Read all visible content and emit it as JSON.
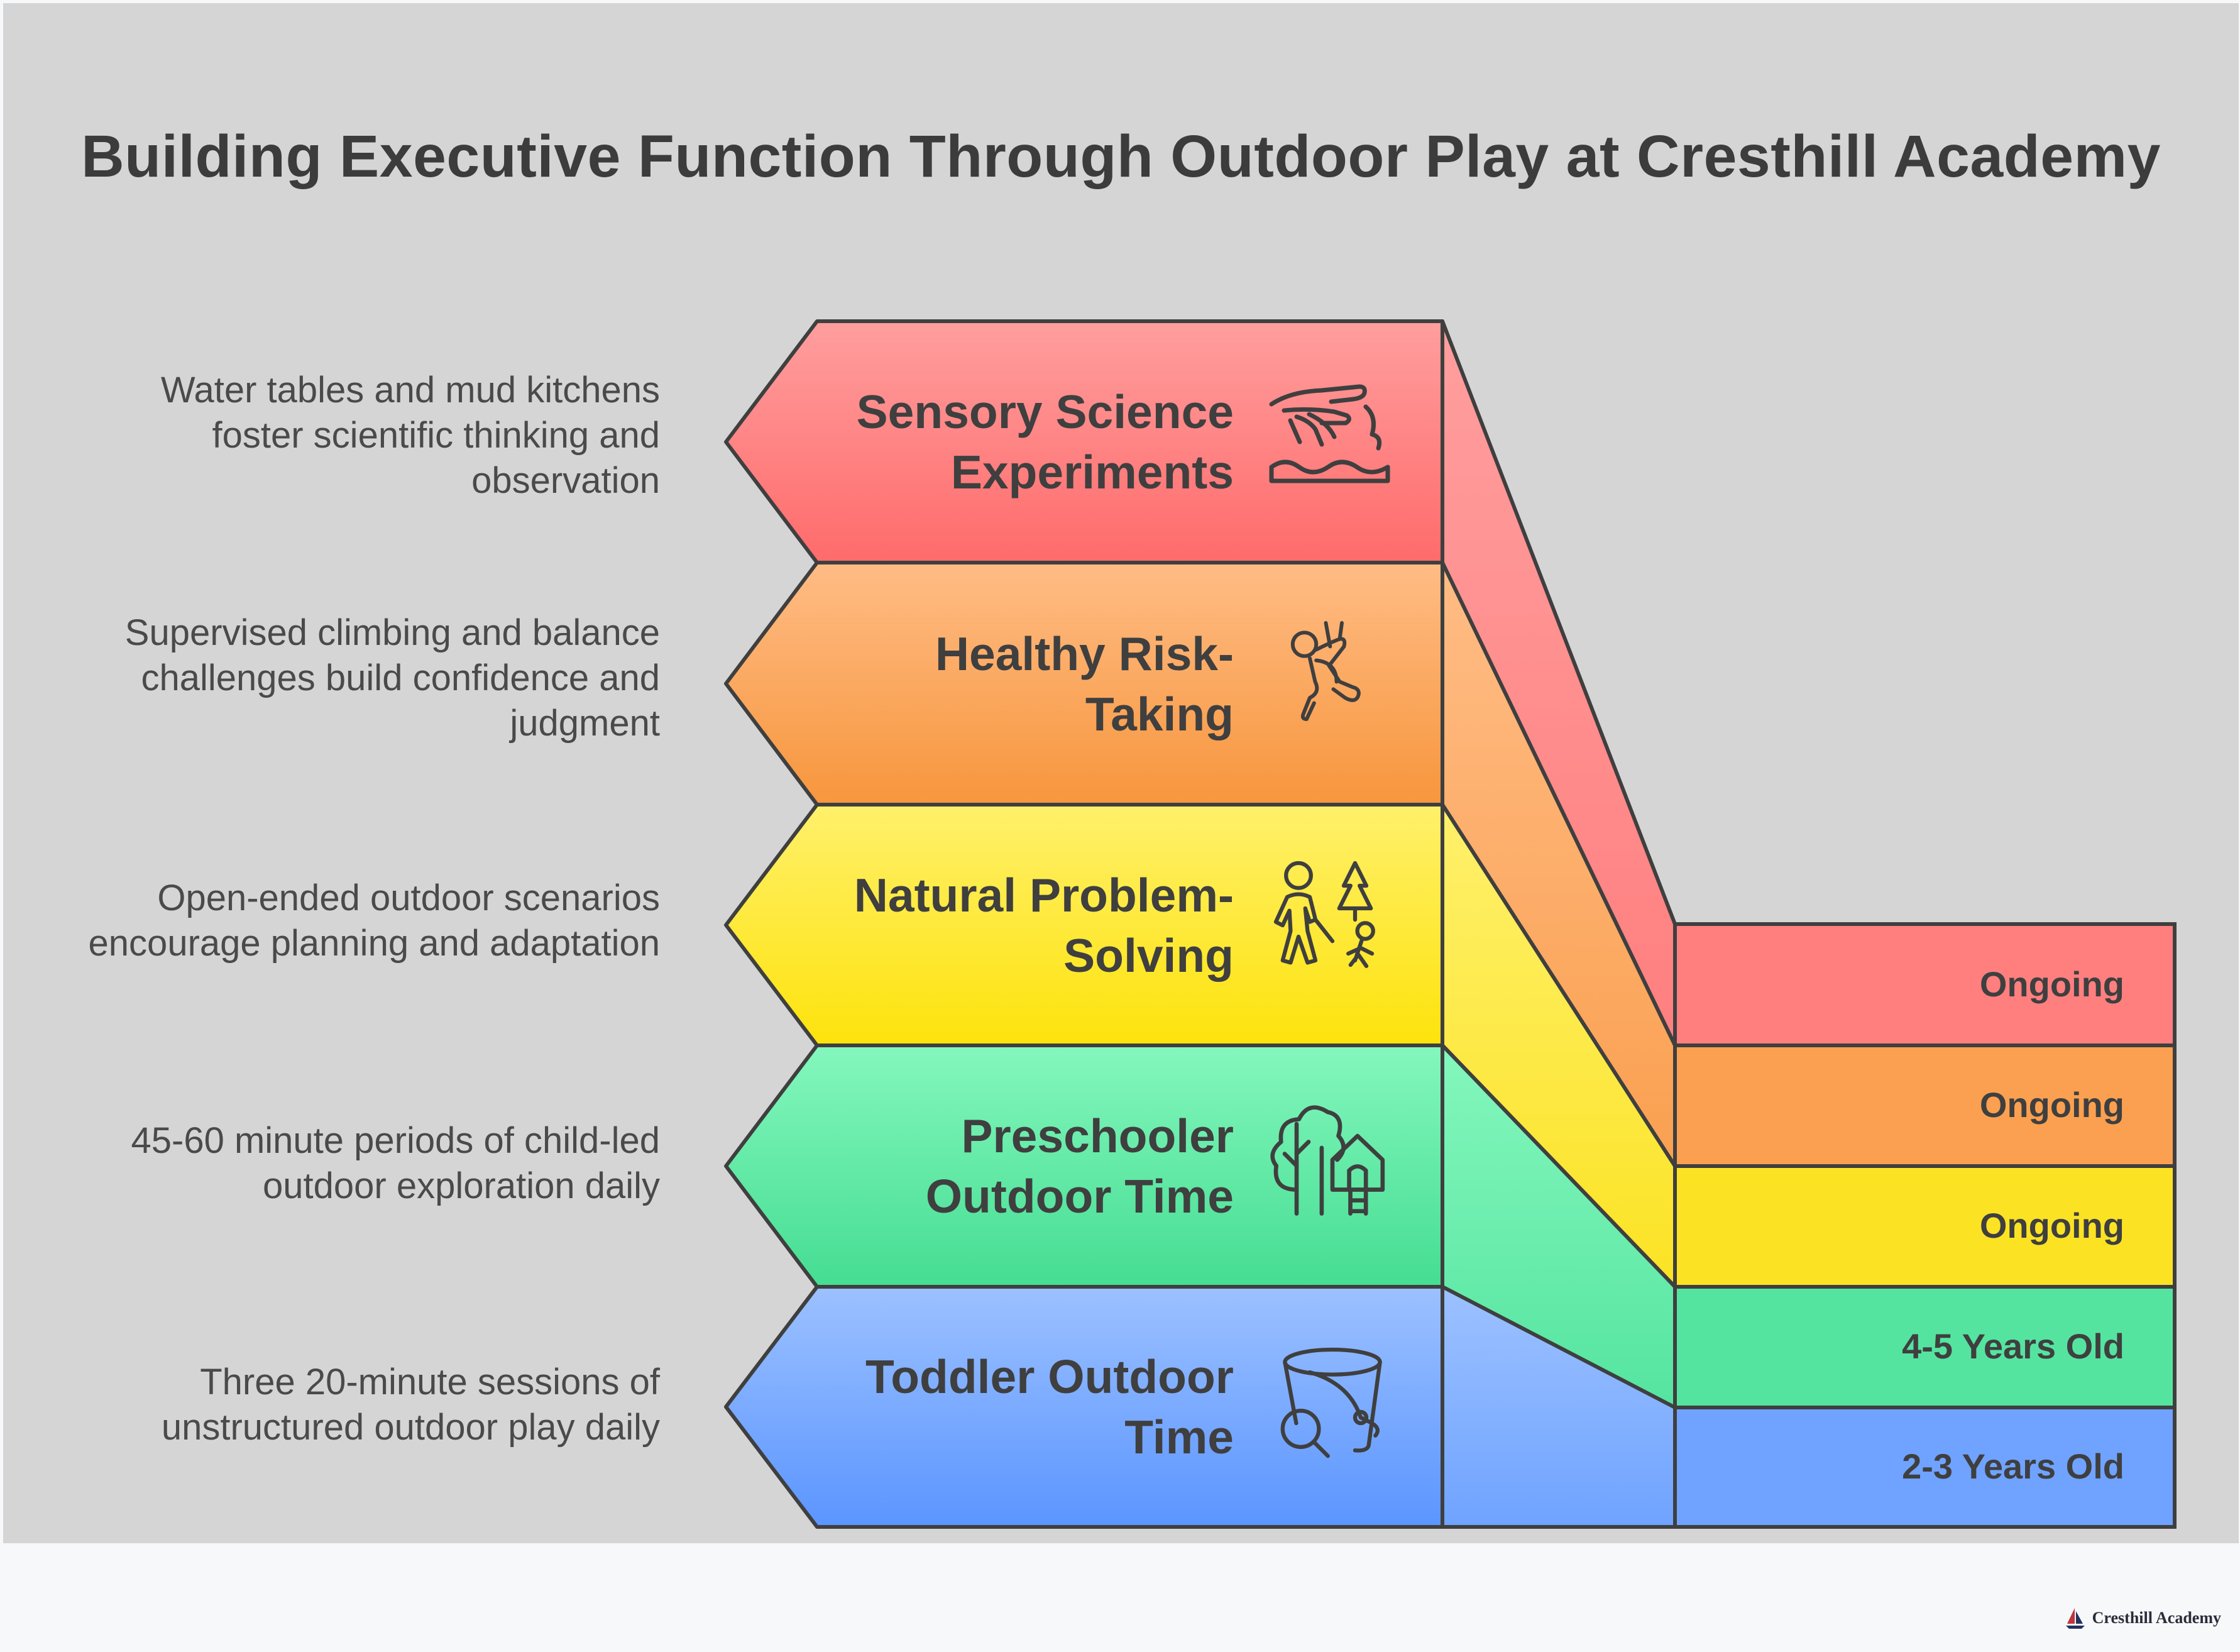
{
  "title": "Building Executive Function Through Outdoor Play at Cresthill Academy",
  "levels": [
    {
      "title_lines": [
        "Sensory Science",
        "Experiments"
      ],
      "description_lines": [
        "Water tables and mud kitchens",
        "foster scientific thinking and",
        "observation"
      ],
      "tag": "Ongoing",
      "icon": "hand-touching-water-icon",
      "colors": {
        "top": "#ff9e9e",
        "bottom": "#ff6b6b",
        "side": "#ff7f7f"
      }
    },
    {
      "title_lines": [
        "Healthy Risk-",
        "Taking"
      ],
      "description_lines": [
        "Supervised climbing and balance",
        "challenges build confidence and",
        "judgment"
      ],
      "tag": "Ongoing",
      "icon": "climbing-child-icon",
      "colors": {
        "top": "#ffbc85",
        "bottom": "#f7963d",
        "side": "#faa050"
      }
    },
    {
      "title_lines": [
        "Natural Problem-",
        "Solving"
      ],
      "description_lines": [
        "Open-ended outdoor scenarios",
        "encourage planning and adaptation"
      ],
      "tag": "Ongoing",
      "icon": "adult-child-hiking-icon",
      "colors": {
        "top": "#fff06b",
        "bottom": "#fde30c",
        "side": "#fbe324"
      }
    },
    {
      "title_lines": [
        "Preschooler",
        "Outdoor Time"
      ],
      "description_lines": [
        "45-60 minute periods of child-led",
        "outdoor exploration daily"
      ],
      "tag": "4-5 Years Old",
      "icon": "tree-and-treehouse-icon",
      "colors": {
        "top": "#84f7bd",
        "bottom": "#45dd92",
        "side": "#55e4a0"
      }
    },
    {
      "title_lines": [
        "Toddler Outdoor",
        "Time"
      ],
      "description_lines": [
        "Three 20-minute sessions of",
        "unstructured outdoor play daily"
      ],
      "tag": "2-3 Years Old",
      "icon": "bucket-magnifier-icon",
      "colors": {
        "top": "#9cc1ff",
        "bottom": "#5b95ff",
        "side": "#6fa3ff"
      }
    }
  ],
  "footer": {
    "brand": "Cresthill Academy",
    "logo_icon": "sailboat-logo-icon"
  }
}
